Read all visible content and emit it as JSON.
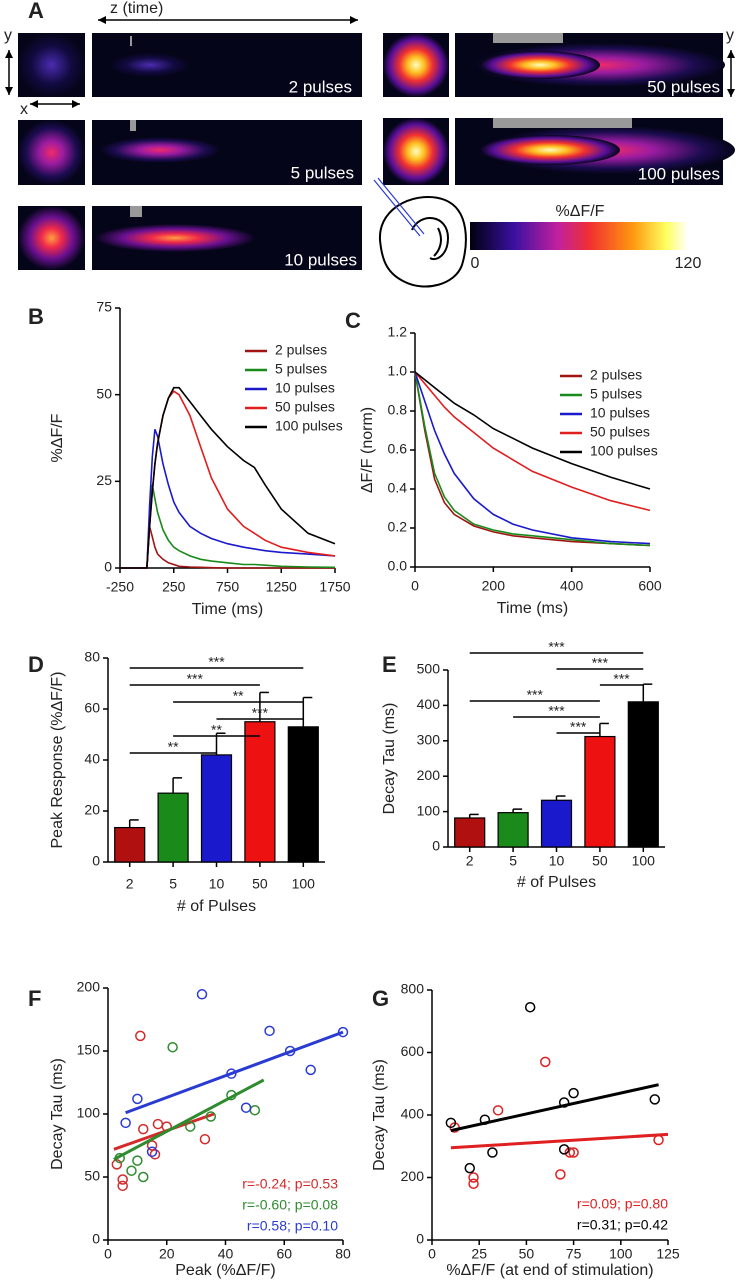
{
  "panel_a": {
    "label": "A",
    "z_axis": "z (time)",
    "y_axis": "y",
    "x_axis": "x",
    "y_axis_right": "y",
    "pulses": [
      "2 pulses",
      "5 pulses",
      "10 pulses",
      "50 pulses",
      "100 pulses"
    ],
    "colorbar": {
      "title": "%ΔF/F",
      "range": [
        0,
        120
      ]
    }
  },
  "chart_data": [
    {
      "panel": "B",
      "type": "line",
      "xlabel": "Time (ms)",
      "ylabel": "%ΔF/F",
      "grid": false,
      "legend": "upper right",
      "x": [
        -250,
        -50,
        0,
        25,
        50,
        75,
        100,
        150,
        200,
        250,
        300,
        400,
        500,
        600,
        750,
        900,
        1000,
        1100,
        1250,
        1500,
        1750
      ],
      "xlim": [
        -250,
        1750
      ],
      "xticks": [
        -250,
        250,
        750,
        1250,
        1750
      ],
      "ylim": [
        0,
        75
      ],
      "yticks": [
        0,
        25,
        50,
        75
      ],
      "series": [
        {
          "name": "2 pulses",
          "color": "#a01414",
          "values": [
            0,
            0,
            0,
            12,
            9,
            6,
            4,
            2.5,
            1.5,
            1,
            0.5,
            0.3,
            0.2,
            0.1,
            0,
            0,
            0,
            0,
            0,
            0,
            0
          ]
        },
        {
          "name": "5 pulses",
          "color": "#1a8a1a",
          "values": [
            0,
            0,
            0,
            15,
            24,
            20,
            16,
            11,
            8,
            6,
            5,
            3.5,
            2.5,
            2,
            1.5,
            1,
            1,
            0.8,
            0.5,
            0.3,
            0.2
          ]
        },
        {
          "name": "10 pulses",
          "color": "#1a1acc",
          "values": [
            0,
            0,
            0,
            18,
            32,
            40,
            38,
            30,
            24,
            19,
            16,
            12,
            10,
            8.5,
            7,
            6,
            5.5,
            5,
            4.5,
            4,
            3.5
          ]
        },
        {
          "name": "50 pulses",
          "color": "#e01e1e",
          "values": [
            0,
            0,
            0,
            12,
            22,
            30,
            36,
            44,
            49,
            51,
            50,
            44,
            35,
            26,
            17,
            12,
            10,
            8,
            6,
            4.5,
            3.5
          ]
        },
        {
          "name": "100 pulses",
          "color": "#000000",
          "values": [
            0,
            0,
            0,
            12,
            22,
            30,
            36,
            44,
            49,
            52,
            52,
            48,
            44,
            40,
            35,
            31,
            29,
            24,
            17,
            10,
            7
          ]
        }
      ]
    },
    {
      "panel": "C",
      "type": "line",
      "xlabel": "Time (ms)",
      "ylabel": "ΔF/F (norm)",
      "grid": false,
      "legend": "upper right",
      "x": [
        0,
        25,
        50,
        75,
        100,
        150,
        200,
        250,
        300,
        400,
        500,
        600
      ],
      "xlim": [
        0,
        600
      ],
      "xticks": [
        0,
        200,
        400,
        600
      ],
      "ylim": [
        0,
        1.2
      ],
      "yticks": [
        {
          "value": 0,
          "label": "0.0"
        },
        0.2,
        0.4,
        0.6,
        0.8,
        {
          "value": 1,
          "label": "1.0"
        },
        1.2
      ],
      "series": [
        {
          "name": "2 pulses",
          "color": "#a01414",
          "values": [
            1.0,
            0.7,
            0.45,
            0.33,
            0.27,
            0.21,
            0.18,
            0.16,
            0.15,
            0.13,
            0.12,
            0.11
          ]
        },
        {
          "name": "5 pulses",
          "color": "#1a8a1a",
          "values": [
            1.0,
            0.72,
            0.48,
            0.36,
            0.29,
            0.22,
            0.19,
            0.17,
            0.16,
            0.14,
            0.12,
            0.11
          ]
        },
        {
          "name": "10 pulses",
          "color": "#1a1acc",
          "values": [
            1.0,
            0.85,
            0.7,
            0.58,
            0.48,
            0.35,
            0.27,
            0.22,
            0.19,
            0.15,
            0.13,
            0.12
          ]
        },
        {
          "name": "50 pulses",
          "color": "#e01e1e",
          "values": [
            1.0,
            0.94,
            0.88,
            0.82,
            0.77,
            0.69,
            0.61,
            0.55,
            0.49,
            0.41,
            0.34,
            0.29
          ]
        },
        {
          "name": "100 pulses",
          "color": "#000000",
          "values": [
            1.0,
            0.96,
            0.92,
            0.88,
            0.84,
            0.78,
            0.71,
            0.66,
            0.61,
            0.53,
            0.46,
            0.4
          ]
        }
      ]
    },
    {
      "panel": "D",
      "type": "bar",
      "xlabel": "# of Pulses",
      "ylabel": "Peak  Response (%ΔF/F)",
      "grid": false,
      "categories": [
        "2",
        "5",
        "10",
        "50",
        "100"
      ],
      "values": [
        13.5,
        27,
        42,
        55,
        53
      ],
      "errors": [
        3,
        6,
        8.5,
        11.5,
        11.5
      ],
      "colors": [
        "#b01010",
        "#1a8a1a",
        "#1a1acc",
        "#ee1111",
        "#000000"
      ],
      "ylim": [
        0,
        80
      ],
      "yticks": [
        0,
        20,
        40,
        60,
        80
      ],
      "comparisons": [
        {
          "from": "2",
          "to": "100",
          "label": "***"
        },
        {
          "from": "2",
          "to": "50",
          "label": "***"
        },
        {
          "from": "5",
          "to": "100",
          "label": "**"
        },
        {
          "from": "10",
          "to": "100",
          "label": "***"
        },
        {
          "from": "5",
          "to": "50",
          "label": "**"
        },
        {
          "from": "2",
          "to": "10",
          "label": "**"
        }
      ]
    },
    {
      "panel": "E",
      "type": "bar",
      "xlabel": "# of Pulses",
      "ylabel": "Decay Tau (ms)",
      "grid": false,
      "categories": [
        "2",
        "5",
        "10",
        "50",
        "100"
      ],
      "values": [
        82,
        97,
        132,
        312,
        410
      ],
      "errors": [
        10,
        10,
        12,
        37,
        50
      ],
      "colors": [
        "#b01010",
        "#1a8a1a",
        "#1a1acc",
        "#ee1111",
        "#000000"
      ],
      "ylim": [
        0,
        500
      ],
      "yticks": [
        0,
        100,
        200,
        300,
        400,
        500
      ],
      "comparisons": [
        {
          "from": "2",
          "to": "100",
          "label": "***"
        },
        {
          "from": "10",
          "to": "100",
          "label": "***"
        },
        {
          "from": "50",
          "to": "100",
          "label": "***"
        },
        {
          "from": "2",
          "to": "50",
          "label": "***"
        },
        {
          "from": "5",
          "to": "50",
          "label": "***"
        },
        {
          "from": "10",
          "to": "50",
          "label": "***"
        }
      ]
    },
    {
      "panel": "F",
      "type": "scatter",
      "xlabel": "Peak (%ΔF/F)",
      "ylabel": "Decay Tau (ms)",
      "grid": false,
      "xlim": [
        0,
        80
      ],
      "xticks": [
        0,
        20,
        40,
        60,
        80
      ],
      "ylim": [
        0,
        200
      ],
      "yticks": [
        0,
        50,
        100,
        150,
        200
      ],
      "series": [
        {
          "color": "#d42a2a",
          "x": [
            11,
            12,
            17,
            20,
            15,
            5,
            5,
            3,
            33,
            16
          ],
          "values": [
            162,
            88,
            92,
            90,
            75,
            48,
            43,
            60,
            80,
            68
          ],
          "fit_x": [
            2,
            36
          ],
          "fit_y": [
            72,
            100
          ],
          "label": "r=-0.24; p=0.53"
        },
        {
          "color": "#2e8b2e",
          "x": [
            22,
            12,
            28,
            42,
            50,
            35,
            4,
            10,
            8
          ],
          "values": [
            153,
            50,
            90,
            115,
            103,
            98,
            65,
            63,
            55
          ],
          "fit_x": [
            2,
            53
          ],
          "fit_y": [
            64,
            127
          ],
          "label": "r=-0.60; p=0.08"
        },
        {
          "color": "#2a3bd4",
          "x": [
            32,
            55,
            62,
            80,
            69,
            42,
            47,
            10,
            15,
            6
          ],
          "values": [
            195,
            166,
            150,
            165,
            135,
            132,
            105,
            112,
            70,
            93
          ],
          "fit_x": [
            6,
            80
          ],
          "fit_y": [
            101,
            165
          ],
          "label": "r=0.58; p=0.10"
        }
      ]
    },
    {
      "panel": "G",
      "type": "scatter",
      "xlabel": "%ΔF/F (at end of stimulation)",
      "ylabel": "Decay Tau (ms)",
      "grid": false,
      "xlim": [
        0,
        125
      ],
      "xticks": [
        0,
        25,
        50,
        75,
        100,
        125
      ],
      "ylim": [
        0,
        800
      ],
      "yticks": [
        0,
        200,
        400,
        600,
        800
      ],
      "series": [
        {
          "color": "#e02020",
          "x": [
            12,
            22,
            22,
            35,
            60,
            68,
            75,
            73,
            120
          ],
          "values": [
            360,
            200,
            180,
            415,
            570,
            210,
            280,
            280,
            320
          ],
          "fit_x": [
            10,
            125
          ],
          "fit_y": [
            295,
            338
          ],
          "label": "r=0.09; p=0.80"
        },
        {
          "color": "#000000",
          "x": [
            10,
            28,
            32,
            52,
            70,
            75,
            70,
            118,
            20
          ],
          "values": [
            375,
            385,
            280,
            745,
            440,
            470,
            290,
            450,
            230
          ],
          "fit_x": [
            10,
            120
          ],
          "fit_y": [
            350,
            497
          ],
          "label": "r=0.31; p=0.42"
        }
      ]
    }
  ]
}
